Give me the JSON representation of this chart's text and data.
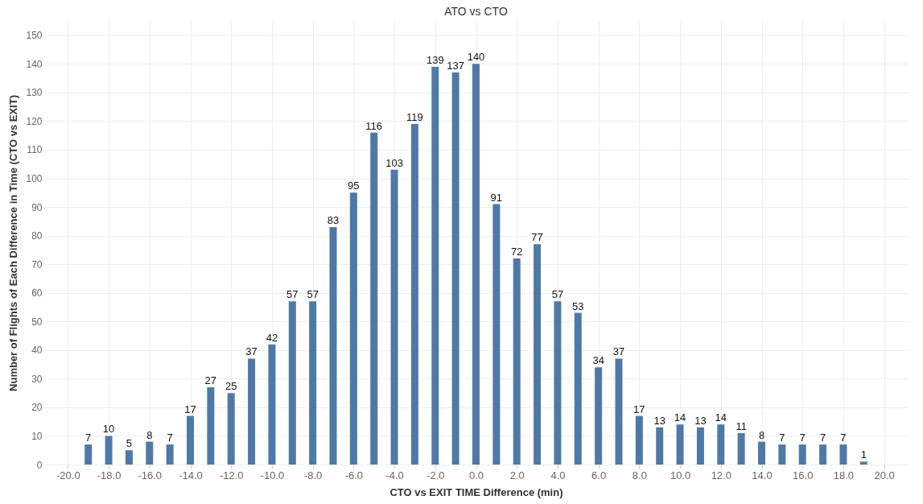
{
  "chart_data": {
    "type": "bar",
    "title": "ATO vs CTO",
    "xlabel": "CTO vs EXIT TIME Difference (min)",
    "ylabel": "Number of Flights of Each Difference in Time (CTO vs EXIT)",
    "x": [
      -19,
      -18,
      -17,
      -16,
      -15,
      -14,
      -13,
      -12,
      -11,
      -10,
      -9,
      -8,
      -7,
      -6,
      -5,
      -4,
      -3,
      -2,
      -1,
      0,
      1,
      2,
      3,
      4,
      5,
      6,
      7,
      8,
      9,
      10,
      11,
      12,
      13,
      14,
      15,
      16,
      17,
      18,
      19
    ],
    "values": [
      7,
      10,
      5,
      8,
      7,
      17,
      27,
      25,
      37,
      42,
      57,
      57,
      83,
      95,
      116,
      103,
      119,
      139,
      137,
      140,
      91,
      72,
      77,
      57,
      53,
      34,
      37,
      17,
      13,
      14,
      13,
      14,
      11,
      8,
      7,
      7,
      7,
      7,
      1
    ],
    "color": "#4e79a7",
    "data_labels": true,
    "grid": true,
    "xlim": [
      -21,
      21
    ],
    "xticks": [
      {
        "value": -20,
        "label": "-20.0"
      },
      {
        "value": -18,
        "label": "-18.0"
      },
      {
        "value": -16,
        "label": "-16.0"
      },
      {
        "value": -14,
        "label": "-14.0"
      },
      {
        "value": -12,
        "label": "-12.0"
      },
      {
        "value": -10,
        "label": "-10.0"
      },
      {
        "value": -8,
        "label": "-8.0"
      },
      {
        "value": -6,
        "label": "-6.0"
      },
      {
        "value": -4,
        "label": "-4.0"
      },
      {
        "value": -2,
        "label": "-2.0"
      },
      {
        "value": 0,
        "label": "0.0"
      },
      {
        "value": 2,
        "label": "2.0"
      },
      {
        "value": 4,
        "label": "4.0"
      },
      {
        "value": 6,
        "label": "6.0"
      },
      {
        "value": 8,
        "label": "8.0"
      },
      {
        "value": 10,
        "label": "10.0"
      },
      {
        "value": 12,
        "label": "12.0"
      },
      {
        "value": 14,
        "label": "14.0"
      },
      {
        "value": 16,
        "label": "16.0"
      },
      {
        "value": 18,
        "label": "18.0"
      },
      {
        "value": 20,
        "label": "20.0"
      }
    ],
    "ylim": [
      0,
      155
    ],
    "yticks": [
      0,
      10,
      20,
      30,
      40,
      50,
      60,
      70,
      80,
      90,
      100,
      110,
      120,
      130,
      140,
      150
    ]
  }
}
